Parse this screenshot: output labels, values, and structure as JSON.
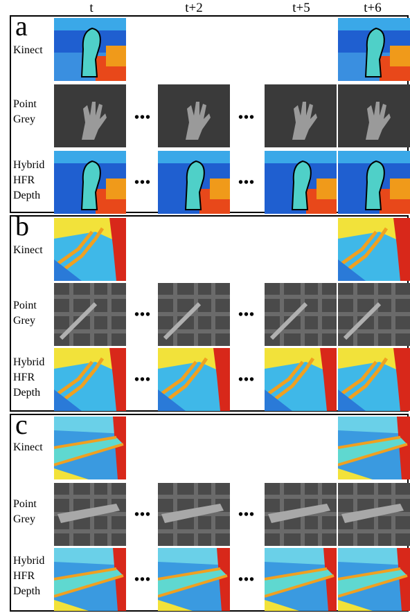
{
  "column_headers": [
    "t",
    "t+2",
    "t+5",
    "t+6"
  ],
  "ellipsis": "•••",
  "panels": [
    {
      "letter": "a",
      "rows": [
        {
          "label_lines": [
            "Kinect"
          ],
          "kind": "depth"
        },
        {
          "label_lines": [
            "Point",
            "Grey"
          ],
          "kind": "gray"
        },
        {
          "label_lines": [
            "Hybrid",
            "HFR",
            "Depth"
          ],
          "kind": "depth"
        }
      ]
    },
    {
      "letter": "b",
      "rows": [
        {
          "label_lines": [
            "Kinect"
          ],
          "kind": "depth"
        },
        {
          "label_lines": [
            "Point",
            "Grey"
          ],
          "kind": "gray"
        },
        {
          "label_lines": [
            "Hybrid",
            "HFR",
            "Depth"
          ],
          "kind": "depth"
        }
      ]
    },
    {
      "letter": "c",
      "rows": [
        {
          "label_lines": [
            "Kinect"
          ],
          "kind": "depth"
        },
        {
          "label_lines": [
            "Point",
            "Grey"
          ],
          "kind": "gray"
        },
        {
          "label_lines": [
            "Hybrid",
            "HFR",
            "Depth"
          ],
          "kind": "depth"
        }
      ]
    }
  ]
}
